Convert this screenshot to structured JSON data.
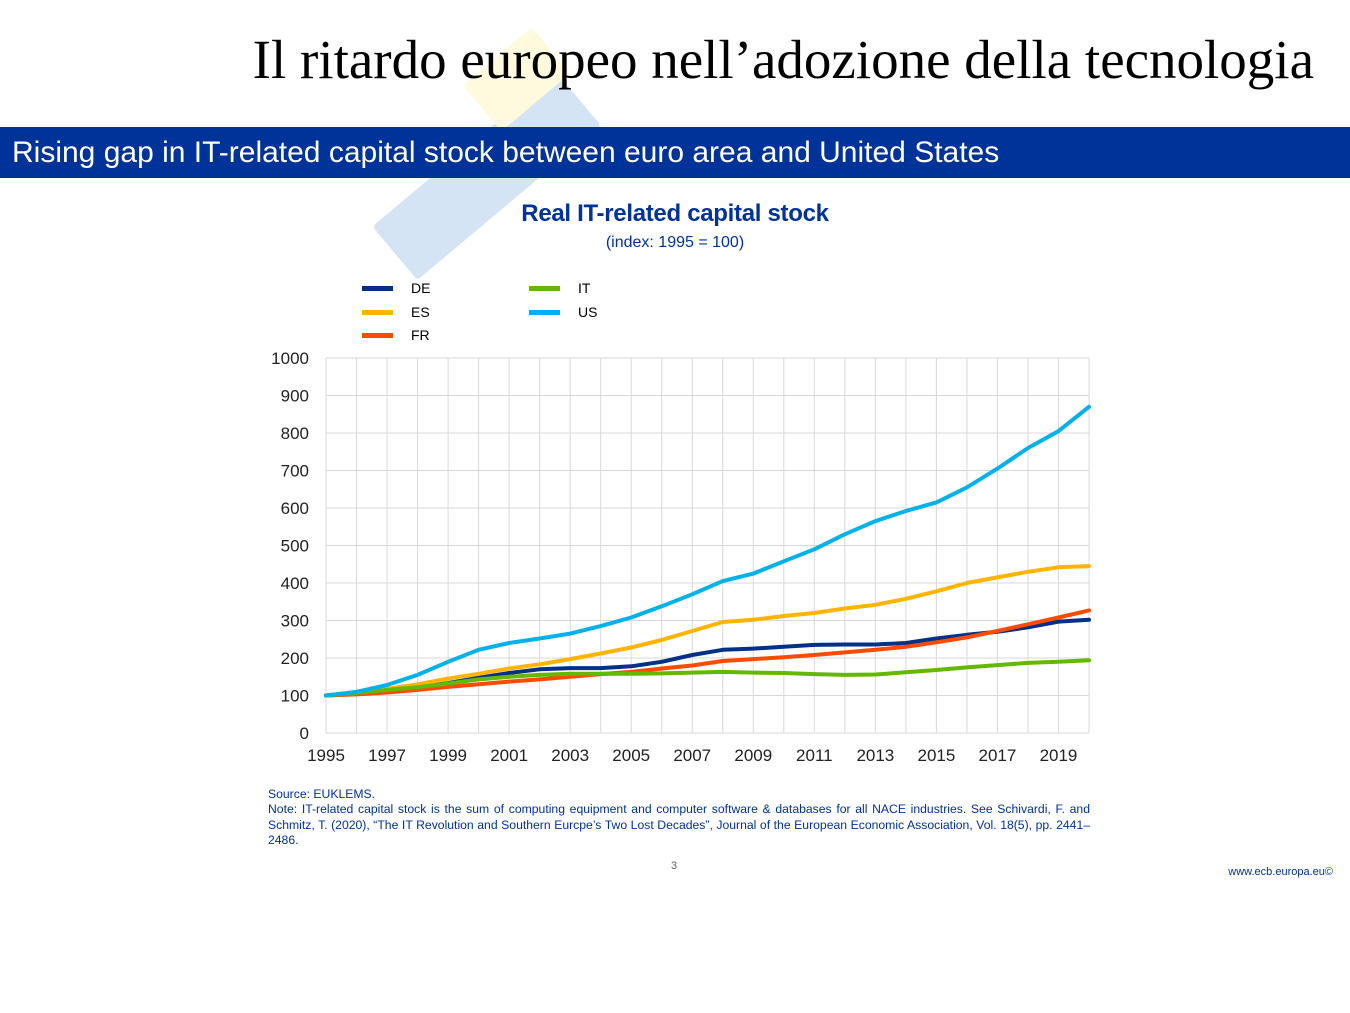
{
  "slide": {
    "title": "Il ritardo europeo nell’adozione della tecnologia",
    "banner": "Rising gap in IT-related capital stock between euro area and United States",
    "page_number": "3",
    "footer_url": "www.ecb.europa.eu©"
  },
  "footnotes": {
    "source": "Source: EUKLEMS.",
    "note": "Note: IT-related capital stock is the sum of computing equipment and computer software & databases for all NACE industries. See Schivardi, F. and Schmitz, T. (2020), “The IT Revolution and Southern Eurcpe’s Two Lost Decades”, Journal of the European Economic Association, Vol. 18(5), pp. 2441–2486."
  },
  "colors": {
    "banner": "#003399",
    "title_text": "#003399",
    "grid": "#d9d9d9"
  },
  "chart_data": {
    "type": "line",
    "title": "Real IT-related capital stock",
    "subtitle": "(index: 1995 = 100)",
    "xlabel": "",
    "ylabel": "",
    "ylim": [
      0,
      1000
    ],
    "xlim": [
      1995,
      2020
    ],
    "yticks": [
      0,
      100,
      200,
      300,
      400,
      500,
      600,
      700,
      800,
      900,
      1000
    ],
    "xtick_labels": [
      "1995",
      "1997",
      "1999",
      "2001",
      "2003",
      "2005",
      "2007",
      "2009",
      "2011",
      "2013",
      "2015",
      "2017",
      "2019"
    ],
    "grid": true,
    "legend_position": "top-left",
    "x": [
      1995,
      1996,
      1997,
      1998,
      1999,
      2000,
      2001,
      2002,
      2003,
      2004,
      2005,
      2006,
      2007,
      2008,
      2009,
      2010,
      2011,
      2012,
      2013,
      2014,
      2015,
      2016,
      2017,
      2018,
      2019,
      2020
    ],
    "series": [
      {
        "name": "DE",
        "color": "#003087",
        "values": [
          100,
          105,
          113,
          122,
          133,
          147,
          160,
          170,
          173,
          173,
          178,
          190,
          208,
          222,
          225,
          230,
          235,
          236,
          236,
          240,
          252,
          262,
          270,
          282,
          297,
          302
        ]
      },
      {
        "name": "ES",
        "color": "#ffb400",
        "values": [
          100,
          107,
          118,
          130,
          145,
          158,
          172,
          183,
          197,
          212,
          228,
          248,
          272,
          296,
          302,
          312,
          320,
          332,
          342,
          358,
          378,
          400,
          415,
          430,
          442,
          445
        ]
      },
      {
        "name": "FR",
        "color": "#ff4b00",
        "values": [
          100,
          103,
          108,
          115,
          123,
          130,
          137,
          143,
          150,
          157,
          163,
          172,
          180,
          192,
          197,
          202,
          208,
          215,
          222,
          230,
          242,
          255,
          272,
          290,
          308,
          327
        ]
      },
      {
        "name": "IT",
        "color": "#65b800",
        "values": [
          100,
          107,
          115,
          122,
          132,
          143,
          150,
          155,
          158,
          158,
          158,
          159,
          161,
          163,
          161,
          160,
          157,
          155,
          156,
          162,
          168,
          175,
          181,
          187,
          190,
          194
        ]
      },
      {
        "name": "US",
        "color": "#00b1ea",
        "values": [
          100,
          110,
          128,
          155,
          190,
          222,
          240,
          252,
          265,
          285,
          308,
          338,
          370,
          405,
          425,
          458,
          490,
          530,
          565,
          592,
          615,
          655,
          705,
          760,
          805,
          870
        ]
      }
    ]
  }
}
